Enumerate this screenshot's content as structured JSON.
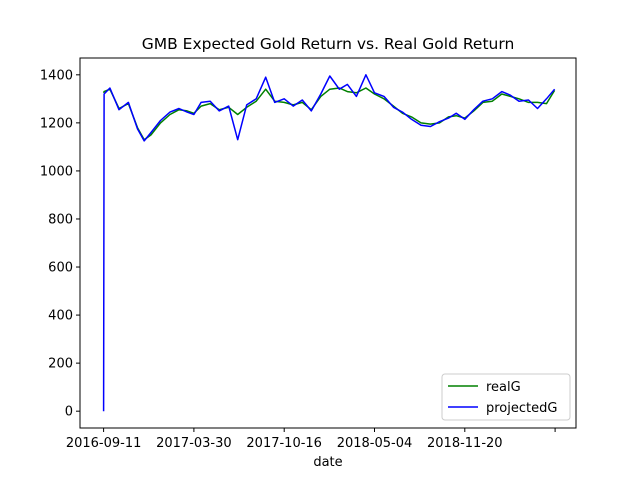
{
  "chart_data": {
    "type": "line",
    "title": "GMB Expected Gold Return vs. Real Gold Return",
    "xlabel": "date",
    "ylabel": "",
    "x_tick_labels": [
      "2016-09-11",
      "2017-03-30",
      "2017-10-16",
      "2018-05-04",
      "2018-11-20",
      ""
    ],
    "ylim": [
      -70,
      1470
    ],
    "yticks": [
      0,
      200,
      400,
      600,
      800,
      1000,
      1200,
      1400
    ],
    "grid": false,
    "legend": "bottom-right",
    "series": [
      {
        "name": "realG",
        "color": "#008000",
        "x": [
          "2016-09-11",
          "2016-09-12",
          "2016-09-25",
          "2016-10-15",
          "2016-11-05",
          "2016-11-25",
          "2016-12-10",
          "2016-12-25",
          "2017-01-15",
          "2017-02-05",
          "2017-02-25",
          "2017-03-15",
          "2017-03-30",
          "2017-04-15",
          "2017-05-05",
          "2017-05-25",
          "2017-06-15",
          "2017-07-05",
          "2017-07-25",
          "2017-08-15",
          "2017-09-05",
          "2017-09-25",
          "2017-10-16",
          "2017-11-05",
          "2017-11-25",
          "2017-12-15",
          "2018-01-05",
          "2018-01-25",
          "2018-02-15",
          "2018-03-05",
          "2018-03-25",
          "2018-04-15",
          "2018-05-04",
          "2018-05-25",
          "2018-06-15",
          "2018-07-05",
          "2018-07-25",
          "2018-08-15",
          "2018-09-05",
          "2018-09-25",
          "2018-10-15",
          "2018-11-01",
          "2018-11-20",
          "2018-12-10",
          "2018-12-30",
          "2019-01-20",
          "2019-02-10",
          "2019-03-01",
          "2019-03-20",
          "2019-04-10",
          "2019-04-30",
          "2019-05-20",
          "2019-06-07"
        ],
        "values": [
          1325,
          1330,
          1340,
          1260,
          1280,
          1180,
          1130,
          1150,
          1200,
          1235,
          1255,
          1250,
          1240,
          1270,
          1280,
          1255,
          1265,
          1235,
          1265,
          1290,
          1340,
          1290,
          1285,
          1275,
          1285,
          1255,
          1310,
          1340,
          1345,
          1330,
          1325,
          1345,
          1320,
          1300,
          1270,
          1240,
          1225,
          1200,
          1195,
          1200,
          1225,
          1230,
          1220,
          1250,
          1285,
          1290,
          1320,
          1310,
          1300,
          1285,
          1285,
          1280,
          1335
        ]
      },
      {
        "name": "projectedG",
        "color": "#0000ff",
        "x": [
          "2016-09-11",
          "2016-09-12",
          "2016-09-25",
          "2016-10-15",
          "2016-11-05",
          "2016-11-25",
          "2016-12-10",
          "2016-12-25",
          "2017-01-15",
          "2017-02-05",
          "2017-02-25",
          "2017-03-15",
          "2017-03-30",
          "2017-04-15",
          "2017-05-05",
          "2017-05-25",
          "2017-06-15",
          "2017-07-05",
          "2017-07-25",
          "2017-08-15",
          "2017-09-05",
          "2017-09-25",
          "2017-10-16",
          "2017-11-05",
          "2017-11-25",
          "2017-12-15",
          "2018-01-05",
          "2018-01-25",
          "2018-02-15",
          "2018-03-05",
          "2018-03-25",
          "2018-04-15",
          "2018-05-04",
          "2018-05-25",
          "2018-06-15",
          "2018-07-05",
          "2018-07-25",
          "2018-08-15",
          "2018-09-05",
          "2018-09-25",
          "2018-10-15",
          "2018-11-01",
          "2018-11-20",
          "2018-12-10",
          "2018-12-30",
          "2019-01-20",
          "2019-02-10",
          "2019-03-01",
          "2019-03-20",
          "2019-04-10",
          "2019-04-30",
          "2019-05-20",
          "2019-06-07"
        ],
        "values": [
          0,
          1320,
          1345,
          1255,
          1285,
          1175,
          1125,
          1160,
          1210,
          1245,
          1260,
          1245,
          1235,
          1285,
          1290,
          1250,
          1270,
          1130,
          1275,
          1300,
          1390,
          1285,
          1300,
          1270,
          1295,
          1250,
          1320,
          1395,
          1340,
          1360,
          1310,
          1400,
          1325,
          1310,
          1265,
          1245,
          1215,
          1190,
          1185,
          1205,
          1220,
          1240,
          1215,
          1255,
          1290,
          1300,
          1330,
          1315,
          1290,
          1295,
          1260,
          1300,
          1340
        ]
      }
    ]
  }
}
